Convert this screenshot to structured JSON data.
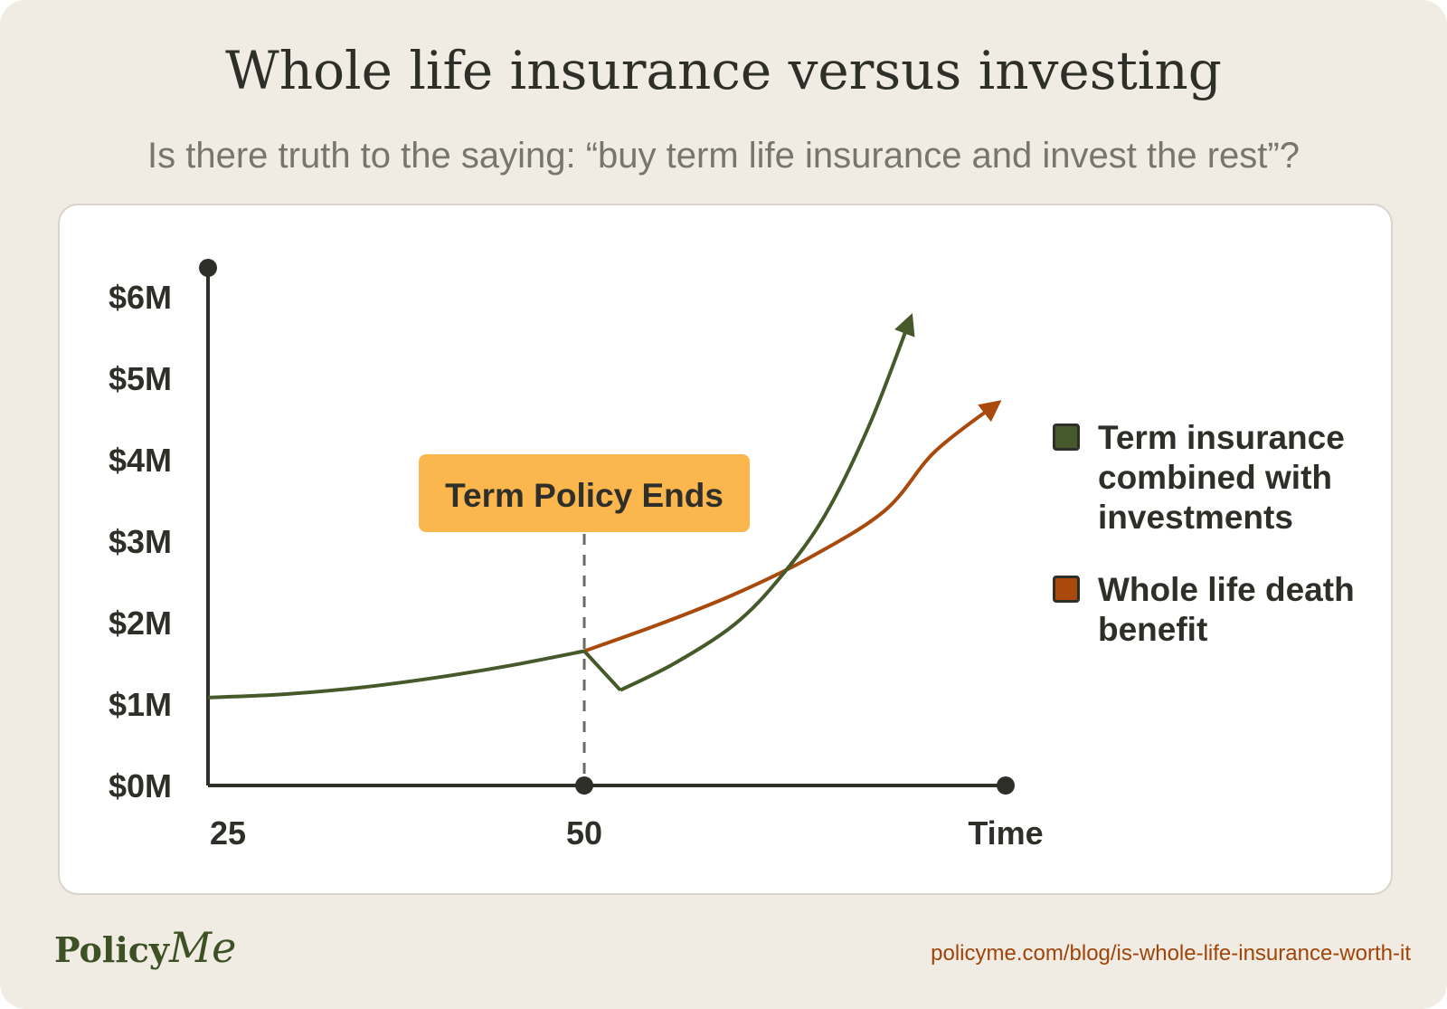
{
  "page": {
    "title": "Whole life insurance versus investing",
    "subtitle": "Is there truth to the saying: “buy term life insurance and invest the rest”?",
    "source_url": "policyme.com/blog/is-whole-life-insurance-worth-it",
    "logo": {
      "main": "Policy",
      "accent": "Me"
    }
  },
  "colors": {
    "background": "#f0ebe3",
    "term_series": "#46592a",
    "whole_series": "#a94a0c",
    "callout": "#fbb64e",
    "axis": "#2f2f2a"
  },
  "chart_data": {
    "type": "line",
    "title": "Whole life insurance versus investing",
    "xlabel": "Time",
    "ylabel": "",
    "x_ticks": [
      {
        "value": 25,
        "label": "25"
      },
      {
        "value": 50,
        "label": "50"
      }
    ],
    "x_axis_end_label": "Time",
    "y_ticks": [
      "$0M",
      "$1M",
      "$2M",
      "$3M",
      "$4M",
      "$5M",
      "$6M"
    ],
    "xlim": [
      25,
      78
    ],
    "ylim": [
      0,
      6
    ],
    "annotation": {
      "label": "Term Policy Ends",
      "x": 50
    },
    "series": [
      {
        "name": "Term insurance combined with investments",
        "color": "#46592a",
        "points": [
          [
            25,
            1.08
          ],
          [
            30,
            1.12
          ],
          [
            35,
            1.2
          ],
          [
            40,
            1.32
          ],
          [
            45,
            1.47
          ],
          [
            50,
            1.65
          ],
          [
            52.4,
            1.17
          ],
          [
            56,
            1.5
          ],
          [
            60,
            1.98
          ],
          [
            63,
            2.55
          ],
          [
            66,
            3.32
          ],
          [
            69,
            4.45
          ],
          [
            71.7,
            5.75
          ]
        ]
      },
      {
        "name": "Whole life death benefit",
        "color": "#a94a0c",
        "points": [
          [
            50,
            1.65
          ],
          [
            55,
            1.98
          ],
          [
            60,
            2.35
          ],
          [
            65,
            2.8
          ],
          [
            70,
            3.38
          ],
          [
            73.3,
            4.1
          ],
          [
            77.5,
            4.7
          ]
        ]
      }
    ]
  }
}
